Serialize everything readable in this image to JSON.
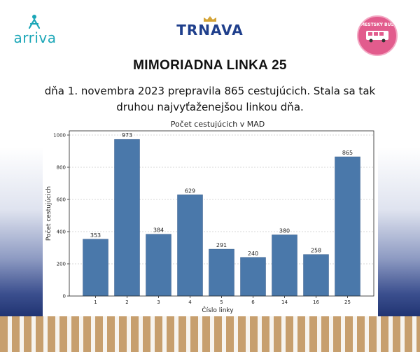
{
  "logos": {
    "arriva": "arriva",
    "trnava": "TRNAVA",
    "mestsky_bus": "MESTSKÝ BUS"
  },
  "header": {
    "title": "MIMORIADNA LINKA 25",
    "subtitle": "dňa 1. novembra 2023 prepravila 865 cestujúcich. Stala sa tak druhou najvyťaženejšou linkou dňa."
  },
  "colors": {
    "bar": "#4a78aa",
    "bar_edge": "#3a5f8c",
    "grid": "#b0b0b0"
  },
  "chart_data": {
    "type": "bar",
    "title": "Počet cestujúcich v MAD",
    "xlabel": "Číslo linky",
    "ylabel": "Počet cestujúcich",
    "categories": [
      "1",
      "2",
      "3",
      "4",
      "5",
      "6",
      "14",
      "16",
      "25"
    ],
    "values": [
      353,
      973,
      384,
      629,
      291,
      240,
      380,
      258,
      865
    ],
    "ylim": [
      0,
      1000
    ],
    "yticks": [
      0,
      200,
      400,
      600,
      800,
      1000
    ],
    "grid": true,
    "data_labels": true
  }
}
